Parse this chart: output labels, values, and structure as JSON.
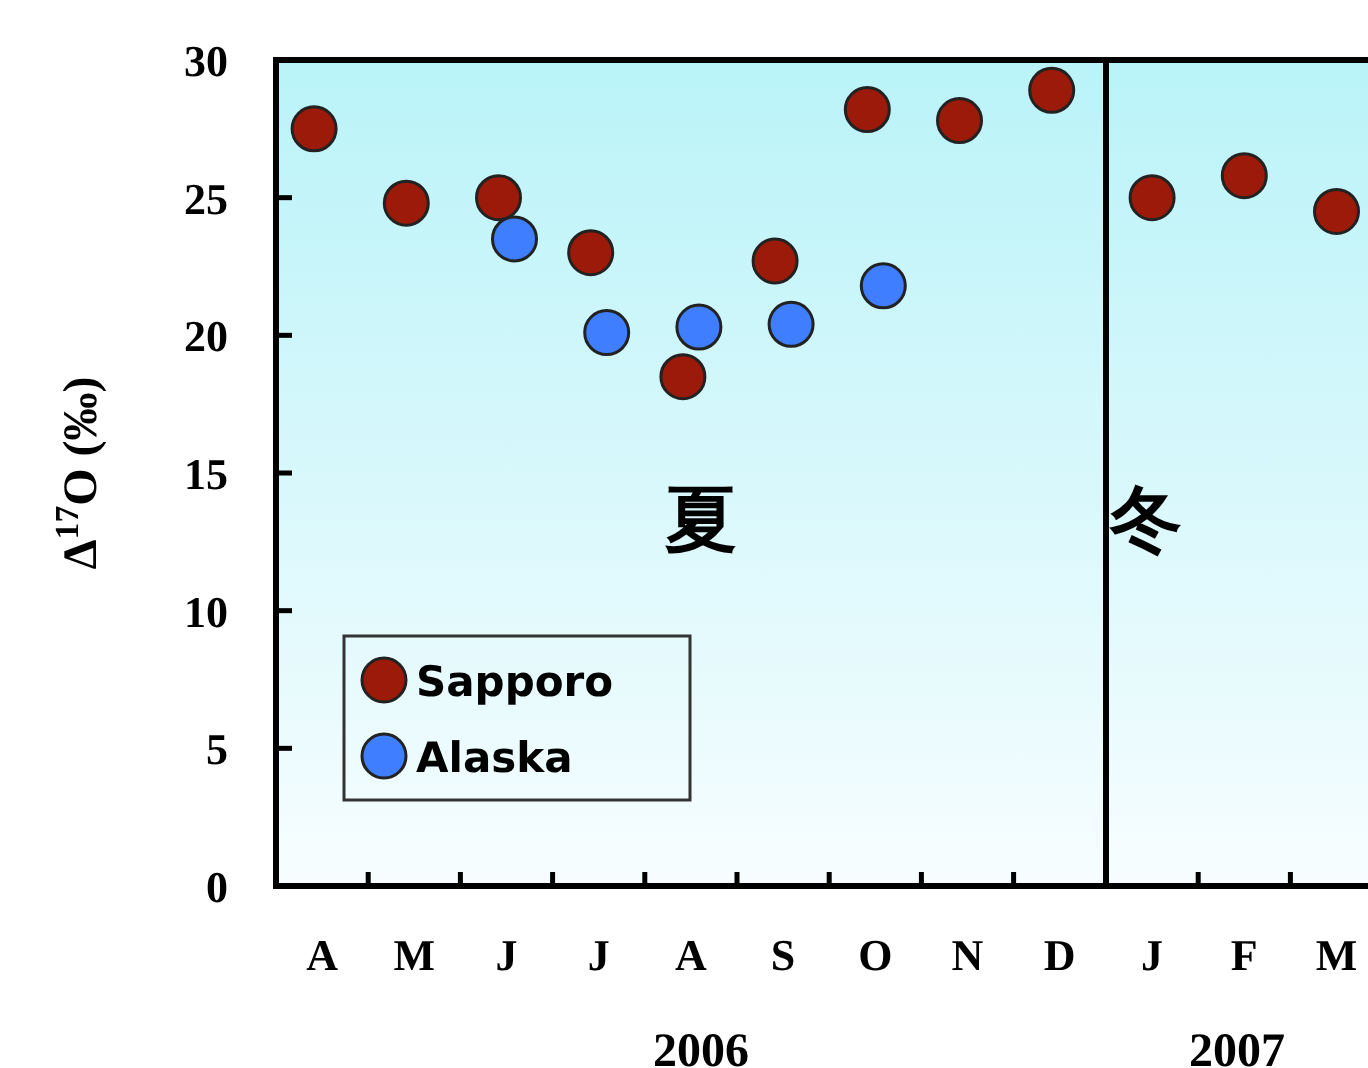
{
  "chart_data": [
    {
      "type": "scatter",
      "ylabel": "Δ$^{17}$O (‰)",
      "xlabel": "2006",
      "marker": "circle",
      "legend": "bottom left",
      "ylim": [
        0,
        30
      ],
      "yticks": [
        0,
        5,
        10,
        15,
        20,
        25,
        30
      ],
      "categories": [
        "A",
        "M",
        "J",
        "J",
        "A",
        "S",
        "O",
        "N",
        "D"
      ],
      "annotations": [
        "夏"
      ],
      "series": [
        {
          "name": "Sapporo",
          "color": "#9b1a0a",
          "values": [
            27.5,
            24.8,
            25.0,
            23.0,
            18.5,
            22.7,
            28.2,
            27.8,
            28.9
          ]
        },
        {
          "name": "Alaska",
          "color": "#3f7fff",
          "values": [
            null,
            null,
            23.5,
            20.1,
            20.3,
            20.4,
            21.8,
            null,
            null
          ]
        }
      ]
    },
    {
      "type": "scatter",
      "xlabel": "2007",
      "marker": "circle",
      "ylim": [
        0,
        30
      ],
      "tick_labels": "x",
      "categories": [
        "J",
        "F",
        "M"
      ],
      "annotations": [
        "冬"
      ],
      "series": [
        {
          "color": "#9b1a0a",
          "values": [
            25.0,
            25.8,
            24.5
          ]
        }
      ]
    }
  ]
}
